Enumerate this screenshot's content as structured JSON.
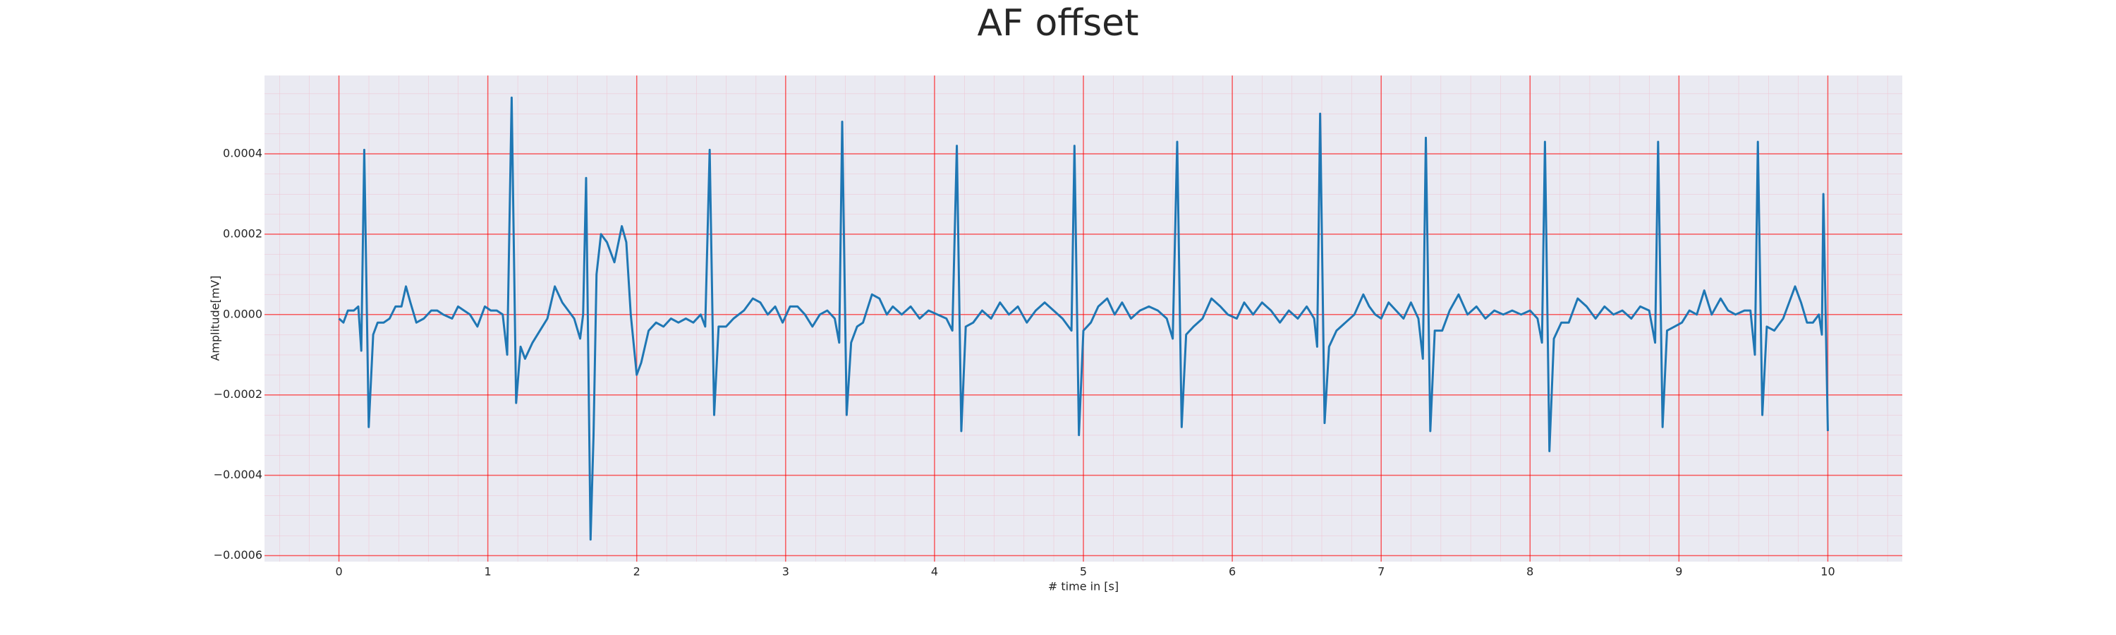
{
  "chart_data": {
    "type": "line",
    "title": "AF offset",
    "xlabel": "# time in [s]",
    "ylabel": "Amplitude[mV]",
    "color": "#1f77b4",
    "grid": true,
    "grid_color": "#ff0000",
    "xlim": [
      -0.5,
      10.5
    ],
    "ylim": [
      -0.000615,
      0.000595
    ],
    "xticks": [
      0,
      1,
      2,
      3,
      4,
      5,
      6,
      7,
      8,
      9,
      10
    ],
    "yticks": [
      {
        "value": -0.0006,
        "label": "−0.0006"
      },
      {
        "value": -0.0004,
        "label": "−0.0004"
      },
      {
        "value": -0.0002,
        "label": "−0.0002"
      },
      {
        "value": 0,
        "label": "0.0000"
      },
      0.0002,
      0.0004
    ],
    "x": [
      0.0,
      0.03,
      0.06,
      0.1,
      0.13,
      0.15,
      0.17,
      0.2,
      0.23,
      0.26,
      0.3,
      0.34,
      0.38,
      0.42,
      0.45,
      0.48,
      0.52,
      0.57,
      0.62,
      0.66,
      0.7,
      0.76,
      0.8,
      0.84,
      0.88,
      0.93,
      0.98,
      1.02,
      1.06,
      1.1,
      1.13,
      1.16,
      1.19,
      1.22,
      1.25,
      1.3,
      1.35,
      1.4,
      1.45,
      1.5,
      1.54,
      1.58,
      1.62,
      1.64,
      1.66,
      1.69,
      1.71,
      1.73,
      1.76,
      1.8,
      1.85,
      1.9,
      1.93,
      1.96,
      2.0,
      2.03,
      2.08,
      2.13,
      2.18,
      2.23,
      2.28,
      2.33,
      2.38,
      2.43,
      2.46,
      2.49,
      2.52,
      2.55,
      2.6,
      2.65,
      2.72,
      2.78,
      2.83,
      2.88,
      2.93,
      2.98,
      3.03,
      3.08,
      3.13,
      3.18,
      3.23,
      3.28,
      3.33,
      3.36,
      3.38,
      3.41,
      3.44,
      3.48,
      3.52,
      3.58,
      3.63,
      3.68,
      3.72,
      3.78,
      3.84,
      3.9,
      3.96,
      4.02,
      4.08,
      4.12,
      4.15,
      4.18,
      4.21,
      4.26,
      4.32,
      4.38,
      4.44,
      4.5,
      4.56,
      4.62,
      4.68,
      4.74,
      4.8,
      4.86,
      4.92,
      4.94,
      4.97,
      5.0,
      5.05,
      5.1,
      5.16,
      5.21,
      5.26,
      5.32,
      5.38,
      5.44,
      5.5,
      5.56,
      5.6,
      5.63,
      5.66,
      5.69,
      5.74,
      5.8,
      5.86,
      5.92,
      5.97,
      6.03,
      6.08,
      6.14,
      6.2,
      6.26,
      6.32,
      6.38,
      6.44,
      6.5,
      6.55,
      6.57,
      6.59,
      6.62,
      6.65,
      6.7,
      6.76,
      6.82,
      6.88,
      6.92,
      6.96,
      7.0,
      7.05,
      7.1,
      7.15,
      7.2,
      7.25,
      7.28,
      7.3,
      7.33,
      7.36,
      7.41,
      7.46,
      7.52,
      7.58,
      7.64,
      7.7,
      7.76,
      7.82,
      7.88,
      7.94,
      8.0,
      8.05,
      8.08,
      8.1,
      8.13,
      8.16,
      8.21,
      8.26,
      8.32,
      8.38,
      8.44,
      8.5,
      8.56,
      8.62,
      8.68,
      8.74,
      8.8,
      8.84,
      8.86,
      8.89,
      8.92,
      8.97,
      9.02,
      9.07,
      9.12,
      9.17,
      9.22,
      9.28,
      9.33,
      9.38,
      9.44,
      9.48,
      9.51,
      9.53,
      9.56,
      9.59,
      9.64,
      9.7,
      9.74,
      9.78,
      9.82,
      9.86,
      9.9,
      9.94,
      9.96,
      9.97,
      10.0
    ],
    "values": [
      -1e-05,
      -2e-05,
      1e-05,
      1e-05,
      2e-05,
      -9e-05,
      0.00041,
      -0.00028,
      -5e-05,
      -2e-05,
      -2e-05,
      -1e-05,
      2e-05,
      2e-05,
      7e-05,
      3e-05,
      -2e-05,
      -1e-05,
      1e-05,
      1e-05,
      0.0,
      -1e-05,
      2e-05,
      1e-05,
      0.0,
      -3e-05,
      2e-05,
      1e-05,
      1e-05,
      0.0,
      -0.0001,
      0.00054,
      -0.00022,
      -8e-05,
      -0.00011,
      -7e-05,
      -4e-05,
      -1e-05,
      7e-05,
      3e-05,
      1e-05,
      -1e-05,
      -6e-05,
      0.0,
      0.00034,
      -0.00056,
      -0.0003,
      0.0001,
      0.0002,
      0.00018,
      0.00013,
      0.00022,
      0.00018,
      0.0,
      -0.00015,
      -0.00012,
      -4e-05,
      -2e-05,
      -3e-05,
      -1e-05,
      -2e-05,
      -1e-05,
      -2e-05,
      0.0,
      -3e-05,
      0.00041,
      -0.00025,
      -3e-05,
      -3e-05,
      -1e-05,
      1e-05,
      4e-05,
      3e-05,
      0.0,
      2e-05,
      -2e-05,
      2e-05,
      2e-05,
      0.0,
      -3e-05,
      0.0,
      1e-05,
      -1e-05,
      -7e-05,
      0.00048,
      -0.00025,
      -7e-05,
      -3e-05,
      -2e-05,
      5e-05,
      4e-05,
      0.0,
      2e-05,
      0.0,
      2e-05,
      -1e-05,
      1e-05,
      0.0,
      -1e-05,
      -4e-05,
      0.00042,
      -0.00029,
      -3e-05,
      -2e-05,
      1e-05,
      -1e-05,
      3e-05,
      0.0,
      2e-05,
      -2e-05,
      1e-05,
      3e-05,
      1e-05,
      -1e-05,
      -4e-05,
      0.00042,
      -0.0003,
      -4e-05,
      -2e-05,
      2e-05,
      4e-05,
      0.0,
      3e-05,
      -1e-05,
      1e-05,
      2e-05,
      1e-05,
      -1e-05,
      -6e-05,
      0.00043,
      -0.00028,
      -5e-05,
      -3e-05,
      -1e-05,
      4e-05,
      2e-05,
      0.0,
      -1e-05,
      3e-05,
      0.0,
      3e-05,
      1e-05,
      -2e-05,
      1e-05,
      -1e-05,
      2e-05,
      -1e-05,
      -8e-05,
      0.0005,
      -0.00027,
      -8e-05,
      -4e-05,
      -2e-05,
      0.0,
      5e-05,
      2e-05,
      0.0,
      -1e-05,
      3e-05,
      1e-05,
      -1e-05,
      3e-05,
      -1e-05,
      -0.00011,
      0.00044,
      -0.00029,
      -4e-05,
      -4e-05,
      1e-05,
      5e-05,
      0.0,
      2e-05,
      -1e-05,
      1e-05,
      0.0,
      1e-05,
      0.0,
      1e-05,
      -1e-05,
      -7e-05,
      0.00043,
      -0.00034,
      -6e-05,
      -2e-05,
      -2e-05,
      4e-05,
      2e-05,
      -1e-05,
      2e-05,
      0.0,
      1e-05,
      -1e-05,
      2e-05,
      1e-05,
      -7e-05,
      0.00043,
      -0.00028,
      -4e-05,
      -3e-05,
      -2e-05,
      1e-05,
      0.0,
      6e-05,
      0.0,
      4e-05,
      1e-05,
      0.0,
      1e-05,
      1e-05,
      -0.0001,
      0.00043,
      -0.00025,
      -3e-05,
      -4e-05,
      -1e-05,
      3e-05,
      7e-05,
      3e-05,
      -2e-05,
      -2e-05,
      0.0,
      -5e-05,
      0.0003,
      -0.00029
    ]
  }
}
